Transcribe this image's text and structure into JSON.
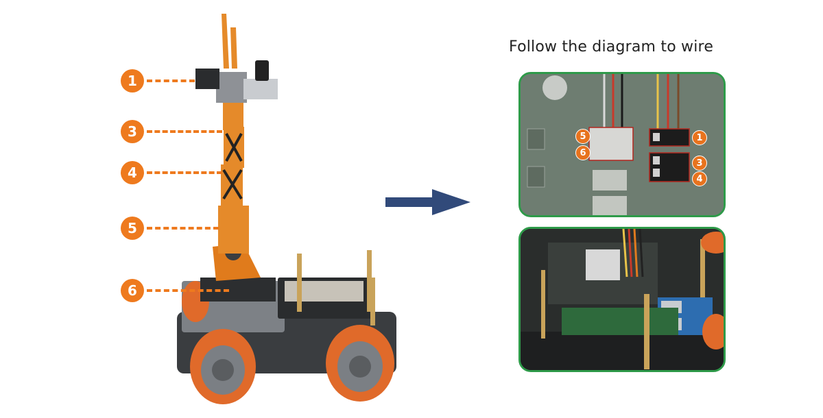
{
  "heading": "Follow the diagram to wire",
  "callouts_left": [
    "1",
    "3",
    "4",
    "5",
    "6"
  ],
  "callouts_board_left": [
    "5",
    "6"
  ],
  "callouts_board_right": [
    "1",
    "3",
    "4"
  ],
  "colors": {
    "orange": "#ee7a1e",
    "green_border": "#2e9a49",
    "arrow": "#314a7a"
  },
  "icons": [
    "robot-arm-car-image",
    "right-arrow-icon",
    "servo-board-closeup-image",
    "wiring-photo-image"
  ]
}
